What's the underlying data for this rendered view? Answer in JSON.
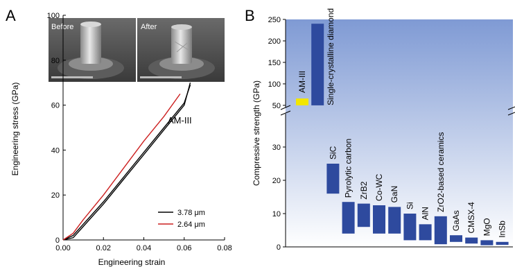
{
  "panel_a": {
    "label": "A",
    "xlabel": "Engineering strain",
    "ylabel": "Engineering stress (GPa)",
    "x_ticks": [
      "0.00",
      "0.02",
      "0.04",
      "0.06",
      "0.08"
    ],
    "y_ticks": [
      "0",
      "20",
      "40",
      "60",
      "80",
      "100"
    ],
    "annotation": "AM-III",
    "inset_before": "Before",
    "inset_after": "After",
    "legend": [
      {
        "label": "3.78 μm",
        "color": "#000000"
      },
      {
        "label": "2.64 μm",
        "color": "#cc1f1f"
      }
    ]
  },
  "panel_b": {
    "label": "B",
    "ylabel": "Compressive strength (GPa)",
    "upper_ticks": [
      "50",
      "100",
      "150",
      "200",
      "250"
    ],
    "lower_ticks": [
      "0",
      "10",
      "20",
      "30"
    ],
    "highlight_color": "#f2e600",
    "bar_color": "#2e4a9e",
    "background_gradient": [
      "#7f9ad4",
      "#ffffff"
    ]
  },
  "chart_data": [
    {
      "type": "line",
      "xlabel": "Engineering strain",
      "ylabel": "Engineering stress (GPa)",
      "xlim": [
        0,
        0.08
      ],
      "ylim": [
        0,
        100
      ],
      "series": [
        {
          "name": "3.78 μm",
          "color": "#000000",
          "x": [
            0,
            0.005,
            0.01,
            0.02,
            0.03,
            0.04,
            0.05,
            0.06,
            0.063
          ],
          "y": [
            0,
            1,
            6,
            16,
            27,
            38,
            49,
            60,
            70
          ]
        },
        {
          "name": "3.78 μm",
          "color": "#000000",
          "x": [
            0,
            0.005,
            0.01,
            0.02,
            0.03,
            0.04,
            0.05,
            0.06,
            0.063
          ],
          "y": [
            0,
            2,
            7,
            17,
            28,
            39,
            50,
            61,
            69
          ]
        },
        {
          "name": "2.64 μm",
          "color": "#cc1f1f",
          "x": [
            0,
            0.005,
            0.01,
            0.02,
            0.03,
            0.04,
            0.05,
            0.058
          ],
          "y": [
            0,
            3,
            9,
            20,
            32,
            44,
            55,
            65
          ]
        }
      ]
    },
    {
      "type": "bar",
      "ylabel": "Compressive strength (GPa)",
      "axis_break": [
        40,
        45
      ],
      "upper_range": [
        45,
        250
      ],
      "lower_range": [
        0,
        40
      ],
      "bars": [
        {
          "label": "AM-III",
          "low": 50,
          "high": 66,
          "highlight": true
        },
        {
          "label": "Single-crystalline diamond",
          "low": 50,
          "high": 240
        },
        {
          "label": "SiC",
          "low": 16,
          "high": 25
        },
        {
          "label": "Pyrolytic carbon",
          "low": 4,
          "high": 13.5
        },
        {
          "label": "ZrB2",
          "low": 6,
          "high": 13
        },
        {
          "label": "Co-WC",
          "low": 4,
          "high": 12.5
        },
        {
          "label": "GaN",
          "low": 4,
          "high": 12
        },
        {
          "label": "Si",
          "low": 2,
          "high": 10
        },
        {
          "label": "AlN",
          "low": 2,
          "high": 6.8
        },
        {
          "label": "ZrO2-based ceramics",
          "low": 0.8,
          "high": 9.2
        },
        {
          "label": "GaAs",
          "low": 1.5,
          "high": 3.5
        },
        {
          "label": "CMSX-4",
          "low": 1,
          "high": 2.8
        },
        {
          "label": "MgO",
          "low": 0.5,
          "high": 2
        },
        {
          "label": "InSb",
          "low": 0.6,
          "high": 1.5
        }
      ]
    }
  ]
}
